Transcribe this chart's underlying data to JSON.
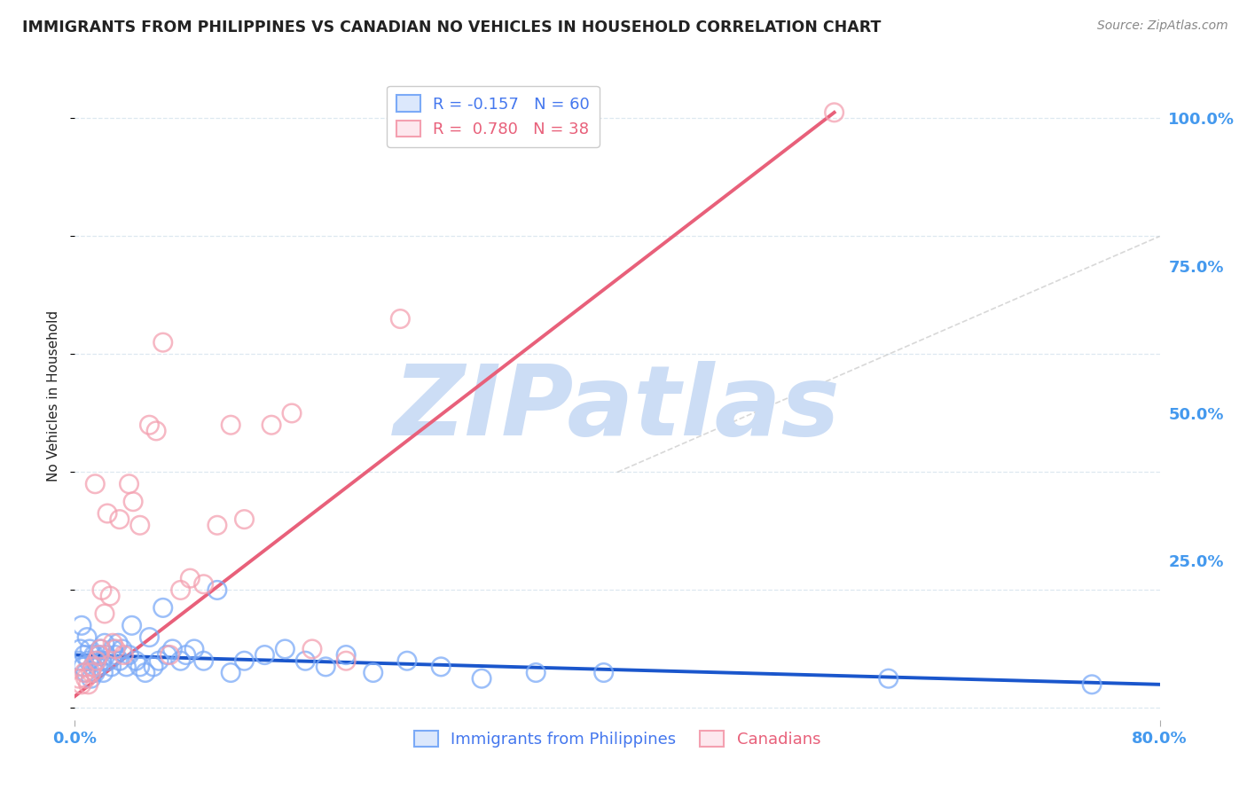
{
  "title": "IMMIGRANTS FROM PHILIPPINES VS CANADIAN NO VEHICLES IN HOUSEHOLD CORRELATION CHART",
  "source": "Source: ZipAtlas.com",
  "ylabel": "No Vehicles in Household",
  "yticks": [
    0.0,
    0.25,
    0.5,
    0.75,
    1.0
  ],
  "ytick_labels": [
    "",
    "25.0%",
    "50.0%",
    "75.0%",
    "100.0%"
  ],
  "xlim": [
    0.0,
    0.8
  ],
  "ylim": [
    -0.02,
    1.08
  ],
  "legend_entries": [
    {
      "label": "R = -0.157   N = 60"
    },
    {
      "label": "R =  0.780   N = 38"
    }
  ],
  "legend_labels": [
    "Immigrants from Philippines",
    "Canadians"
  ],
  "watermark": "ZIPatlas",
  "watermark_color": "#ccddf5",
  "blue_scatter_x": [
    0.003,
    0.004,
    0.005,
    0.006,
    0.007,
    0.008,
    0.009,
    0.01,
    0.011,
    0.012,
    0.013,
    0.014,
    0.015,
    0.016,
    0.017,
    0.018,
    0.019,
    0.02,
    0.021,
    0.022,
    0.023,
    0.025,
    0.027,
    0.028,
    0.03,
    0.032,
    0.033,
    0.035,
    0.038,
    0.04,
    0.042,
    0.045,
    0.048,
    0.052,
    0.055,
    0.058,
    0.062,
    0.065,
    0.068,
    0.072,
    0.078,
    0.082,
    0.088,
    0.095,
    0.105,
    0.115,
    0.125,
    0.14,
    0.155,
    0.17,
    0.185,
    0.2,
    0.22,
    0.245,
    0.27,
    0.3,
    0.34,
    0.39,
    0.6,
    0.75
  ],
  "blue_scatter_y": [
    0.08,
    0.1,
    0.14,
    0.07,
    0.09,
    0.06,
    0.12,
    0.08,
    0.1,
    0.05,
    0.07,
    0.09,
    0.06,
    0.08,
    0.07,
    0.09,
    0.1,
    0.08,
    0.06,
    0.11,
    0.09,
    0.08,
    0.07,
    0.1,
    0.09,
    0.11,
    0.08,
    0.1,
    0.07,
    0.09,
    0.14,
    0.08,
    0.07,
    0.06,
    0.12,
    0.07,
    0.08,
    0.17,
    0.09,
    0.1,
    0.08,
    0.09,
    0.1,
    0.08,
    0.2,
    0.06,
    0.08,
    0.09,
    0.1,
    0.08,
    0.07,
    0.09,
    0.06,
    0.08,
    0.07,
    0.05,
    0.06,
    0.06,
    0.05,
    0.04
  ],
  "pink_scatter_x": [
    0.003,
    0.005,
    0.007,
    0.008,
    0.01,
    0.012,
    0.013,
    0.015,
    0.016,
    0.018,
    0.019,
    0.02,
    0.022,
    0.024,
    0.026,
    0.028,
    0.03,
    0.033,
    0.036,
    0.04,
    0.043,
    0.048,
    0.055,
    0.06,
    0.065,
    0.07,
    0.078,
    0.085,
    0.095,
    0.105,
    0.115,
    0.125,
    0.145,
    0.16,
    0.175,
    0.2,
    0.24,
    0.56
  ],
  "pink_scatter_y": [
    0.05,
    0.04,
    0.06,
    0.05,
    0.04,
    0.06,
    0.07,
    0.38,
    0.08,
    0.09,
    0.1,
    0.2,
    0.16,
    0.33,
    0.19,
    0.11,
    0.1,
    0.32,
    0.09,
    0.38,
    0.35,
    0.31,
    0.48,
    0.47,
    0.62,
    0.09,
    0.2,
    0.22,
    0.21,
    0.31,
    0.48,
    0.32,
    0.48,
    0.5,
    0.1,
    0.08,
    0.66,
    1.01
  ],
  "blue_line_x": [
    0.0,
    0.8
  ],
  "blue_line_y": [
    0.09,
    0.04
  ],
  "pink_line_x": [
    0.0,
    0.56
  ],
  "pink_line_y": [
    0.02,
    1.01
  ],
  "ref_line_x": [
    0.4,
    0.8
  ],
  "ref_line_y": [
    0.4,
    0.8
  ],
  "background_color": "#ffffff",
  "plot_bg_color": "#ffffff",
  "grid_color": "#dde8f0",
  "blue_color": "#7baaf7",
  "pink_color": "#f4a0b0",
  "blue_line_color": "#1a56cc",
  "pink_line_color": "#e8607a",
  "ref_line_color": "#c8c8c8",
  "title_color": "#222222",
  "source_color": "#888888",
  "axis_label_color": "#222222",
  "tick_color": "#4499ee",
  "legend_text_blue": "#4477ee",
  "legend_text_pink": "#e8607a"
}
